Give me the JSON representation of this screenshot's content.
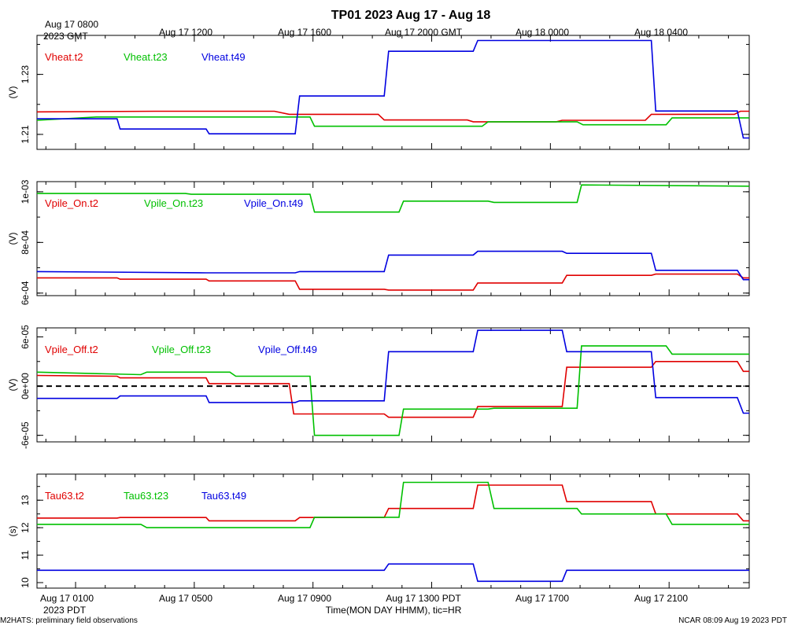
{
  "title": "TP01 2023 Aug 17 - Aug 18",
  "top_axis": {
    "tick_labels": [
      "Aug 17 0800",
      "Aug 17 1200",
      "Aug 17 1600",
      "Aug 17 2000 GMT",
      "Aug 18 0000",
      "Aug 18 0400"
    ],
    "year_label": "2023 GMT"
  },
  "bottom_axis": {
    "tick_labels": [
      "Aug 17 0100",
      "Aug 17 0500",
      "Aug 17 0900",
      "Aug 17 1300 PDT",
      "Aug 17 1700",
      "Aug 17 2100"
    ],
    "year_label": "2023 PDT",
    "xlabel": "Time(MON DAY HHMM), tic=HR"
  },
  "footer": {
    "left": "M2HATS: preliminary field observations",
    "right": "NCAR 08:09 Aug 19 2023 PDT"
  },
  "colors": {
    "t2": "#e00000",
    "t23": "#00c000",
    "t49": "#0000e0"
  },
  "chart_data": [
    {
      "type": "line",
      "ylabel": "(V)",
      "ylim": [
        1.205,
        1.243
      ],
      "ytick_labels": [
        "1.21",
        "1.23"
      ],
      "ytick_values": [
        1.21,
        1.23
      ],
      "zero_line": false,
      "xlim_hours": [
        0,
        24
      ],
      "series": [
        {
          "name": "Vheat.t2",
          "color": "#e00000",
          "points": [
            [
              0,
              1.2175
            ],
            [
              4,
              1.2177
            ],
            [
              8,
              1.2177
            ],
            [
              8.5,
              1.2167
            ],
            [
              11.5,
              1.2167
            ],
            [
              11.7,
              1.2148
            ],
            [
              14.5,
              1.2148
            ],
            [
              14.7,
              1.2142
            ],
            [
              17.5,
              1.2142
            ],
            [
              17.7,
              1.2147
            ],
            [
              20.5,
              1.2147
            ],
            [
              20.7,
              1.2167
            ],
            [
              23.5,
              1.2167
            ],
            [
              23.7,
              1.2177
            ],
            [
              24,
              1.2177
            ]
          ]
        },
        {
          "name": "Vheat.t23",
          "color": "#00c000",
          "points": [
            [
              0,
              1.2147
            ],
            [
              2,
              1.2158
            ],
            [
              9.2,
              1.2158
            ],
            [
              9.35,
              1.2127
            ],
            [
              15,
              1.2127
            ],
            [
              15.2,
              1.2142
            ],
            [
              18.2,
              1.2142
            ],
            [
              18.4,
              1.2132
            ],
            [
              21.2,
              1.2132
            ],
            [
              21.4,
              1.2155
            ],
            [
              24,
              1.2155
            ]
          ]
        },
        {
          "name": "Vheat.t49",
          "color": "#0000e0",
          "points": [
            [
              0,
              1.2152
            ],
            [
              2.7,
              1.2152
            ],
            [
              2.8,
              1.2118
            ],
            [
              5.7,
              1.2118
            ],
            [
              5.8,
              1.2102
            ],
            [
              8.7,
              1.2102
            ],
            [
              8.85,
              1.2228
            ],
            [
              11.7,
              1.2228
            ],
            [
              11.85,
              1.2377
            ],
            [
              14.7,
              1.2377
            ],
            [
              14.85,
              1.2413
            ],
            [
              20.7,
              1.2413
            ],
            [
              20.85,
              1.2178
            ],
            [
              23.6,
              1.2178
            ],
            [
              23.8,
              1.2088
            ],
            [
              24,
              1.2088
            ]
          ]
        }
      ]
    },
    {
      "type": "line",
      "ylabel": "(V)",
      "ylim": [
        0.00059,
        0.00104
      ],
      "ytick_labels": [
        "6e-04",
        "8e-04",
        "1e-03"
      ],
      "ytick_values": [
        0.0006,
        0.0008,
        0.001
      ],
      "zero_line": false,
      "xlim_hours": [
        0,
        24
      ],
      "series": [
        {
          "name": "Vpile_On.t2",
          "color": "#e00000",
          "points": [
            [
              0,
              0.00066
            ],
            [
              2.7,
              0.00066
            ],
            [
              2.8,
              0.000655
            ],
            [
              5.7,
              0.000655
            ],
            [
              5.8,
              0.000648
            ],
            [
              8.7,
              0.000648
            ],
            [
              8.85,
              0.000615
            ],
            [
              11.7,
              0.000615
            ],
            [
              11.85,
              0.000612
            ],
            [
              14.7,
              0.000612
            ],
            [
              14.85,
              0.00064
            ],
            [
              17.7,
              0.00064
            ],
            [
              17.85,
              0.00067
            ],
            [
              20.7,
              0.00067
            ],
            [
              20.85,
              0.000675
            ],
            [
              23.6,
              0.000675
            ],
            [
              23.8,
              0.00066
            ],
            [
              24,
              0.00066
            ]
          ]
        },
        {
          "name": "Vpile_On.t23",
          "color": "#00c000",
          "points": [
            [
              0,
              0.000993
            ],
            [
              5,
              0.000993
            ],
            [
              5.2,
              0.00099
            ],
            [
              9.2,
              0.00099
            ],
            [
              9.35,
              0.00092
            ],
            [
              12.2,
              0.00092
            ],
            [
              12.35,
              0.000963
            ],
            [
              15.2,
              0.000963
            ],
            [
              15.4,
              0.000958
            ],
            [
              18.2,
              0.000958
            ],
            [
              18.35,
              0.001027
            ],
            [
              24,
              0.001022
            ]
          ]
        },
        {
          "name": "Vpile_On.t49",
          "color": "#0000e0",
          "points": [
            [
              0,
              0.000685
            ],
            [
              5.7,
              0.00068
            ],
            [
              8.7,
              0.00068
            ],
            [
              8.85,
              0.000685
            ],
            [
              11.7,
              0.000685
            ],
            [
              11.85,
              0.00075
            ],
            [
              14.7,
              0.00075
            ],
            [
              14.85,
              0.000765
            ],
            [
              17.7,
              0.000765
            ],
            [
              17.85,
              0.000757
            ],
            [
              20.7,
              0.000757
            ],
            [
              20.85,
              0.00069
            ],
            [
              23.6,
              0.00069
            ],
            [
              23.8,
              0.000653
            ],
            [
              24,
              0.000653
            ]
          ]
        }
      ]
    },
    {
      "type": "line",
      "ylabel": "(V)",
      "ylim": [
        -6.8e-05,
        7.1e-05
      ],
      "ytick_labels": [
        "-6e-05",
        "0e+00",
        "6e-05"
      ],
      "ytick_values": [
        -6e-05,
        0,
        6e-05
      ],
      "zero_line": true,
      "xlim_hours": [
        0,
        24
      ],
      "series": [
        {
          "name": "Vpile_Off.t2",
          "color": "#e00000",
          "points": [
            [
              0,
              1.3e-05
            ],
            [
              2.7,
              1.2e-05
            ],
            [
              2.8,
              1e-05
            ],
            [
              5.7,
              1e-05
            ],
            [
              5.8,
              3e-06
            ],
            [
              8.5,
              3e-06
            ],
            [
              8.65,
              -3.4e-05
            ],
            [
              11.7,
              -3.4e-05
            ],
            [
              11.85,
              -3.8e-05
            ],
            [
              14.7,
              -3.8e-05
            ],
            [
              14.85,
              -2.5e-05
            ],
            [
              17.7,
              -2.5e-05
            ],
            [
              17.85,
              2.3e-05
            ],
            [
              20.7,
              2.3e-05
            ],
            [
              20.85,
              3e-05
            ],
            [
              23.6,
              3e-05
            ],
            [
              23.8,
              1.8e-05
            ],
            [
              24,
              1.8e-05
            ]
          ]
        },
        {
          "name": "Vpile_Off.t23",
          "color": "#00c000",
          "points": [
            [
              0,
              1.7e-05
            ],
            [
              3.5,
              1.4e-05
            ],
            [
              3.7,
              1.7e-05
            ],
            [
              6.5,
              1.7e-05
            ],
            [
              6.7,
              1.2e-05
            ],
            [
              9.2,
              1.2e-05
            ],
            [
              9.35,
              -6e-05
            ],
            [
              12.2,
              -6e-05
            ],
            [
              12.35,
              -2.8e-05
            ],
            [
              15.2,
              -2.8e-05
            ],
            [
              15.4,
              -2.7e-05
            ],
            [
              18.2,
              -2.7e-05
            ],
            [
              18.35,
              4.9e-05
            ],
            [
              21.2,
              4.9e-05
            ],
            [
              21.4,
              3.9e-05
            ],
            [
              24,
              3.9e-05
            ]
          ]
        },
        {
          "name": "Vpile_Off.t49",
          "color": "#0000e0",
          "points": [
            [
              0,
              -1.5e-05
            ],
            [
              2.7,
              -1.5e-05
            ],
            [
              2.8,
              -1.2e-05
            ],
            [
              5.7,
              -1.2e-05
            ],
            [
              5.8,
              -2e-05
            ],
            [
              8.7,
              -2e-05
            ],
            [
              8.85,
              -1.8e-05
            ],
            [
              11.7,
              -1.8e-05
            ],
            [
              11.85,
              4.2e-05
            ],
            [
              14.7,
              4.2e-05
            ],
            [
              14.85,
              6.8e-05
            ],
            [
              17.7,
              6.8e-05
            ],
            [
              17.85,
              4.2e-05
            ],
            [
              20.7,
              4.2e-05
            ],
            [
              20.85,
              -1.4e-05
            ],
            [
              23.6,
              -1.4e-05
            ],
            [
              23.8,
              -3.3e-05
            ],
            [
              24,
              -3.3e-05
            ]
          ]
        }
      ]
    },
    {
      "type": "line",
      "ylabel": "(s)",
      "ylim": [
        9.8,
        13.95
      ],
      "ytick_labels": [
        "10",
        "11",
        "12",
        "13"
      ],
      "ytick_values": [
        10,
        11,
        12,
        13
      ],
      "zero_line": false,
      "xlim_hours": [
        0,
        24
      ],
      "series": [
        {
          "name": "Tau63.t2",
          "color": "#e00000",
          "points": [
            [
              0,
              12.35
            ],
            [
              2.7,
              12.35
            ],
            [
              2.8,
              12.37
            ],
            [
              5.7,
              12.37
            ],
            [
              5.8,
              12.25
            ],
            [
              8.7,
              12.25
            ],
            [
              8.85,
              12.37
            ],
            [
              11.7,
              12.37
            ],
            [
              11.85,
              12.7
            ],
            [
              14.7,
              12.7
            ],
            [
              14.85,
              13.55
            ],
            [
              17.7,
              13.55
            ],
            [
              17.85,
              12.95
            ],
            [
              20.7,
              12.95
            ],
            [
              20.85,
              12.5
            ],
            [
              23.6,
              12.5
            ],
            [
              23.8,
              12.25
            ],
            [
              24,
              12.25
            ]
          ]
        },
        {
          "name": "Tau63.t23",
          "color": "#00c000",
          "points": [
            [
              0,
              12.12
            ],
            [
              3.5,
              12.12
            ],
            [
              3.7,
              12.0
            ],
            [
              9.2,
              12.0
            ],
            [
              9.35,
              12.38
            ],
            [
              12.2,
              12.38
            ],
            [
              12.35,
              13.65
            ],
            [
              15.2,
              13.65
            ],
            [
              15.4,
              12.7
            ],
            [
              18.2,
              12.7
            ],
            [
              18.35,
              12.5
            ],
            [
              21.2,
              12.5
            ],
            [
              21.4,
              12.12
            ],
            [
              24,
              12.12
            ]
          ]
        },
        {
          "name": "Tau63.t49",
          "color": "#0000e0",
          "points": [
            [
              0,
              10.45
            ],
            [
              11.7,
              10.45
            ],
            [
              11.85,
              10.68
            ],
            [
              14.7,
              10.68
            ],
            [
              14.85,
              10.05
            ],
            [
              17.7,
              10.05
            ],
            [
              17.85,
              10.45
            ],
            [
              24,
              10.45
            ]
          ]
        }
      ]
    }
  ]
}
